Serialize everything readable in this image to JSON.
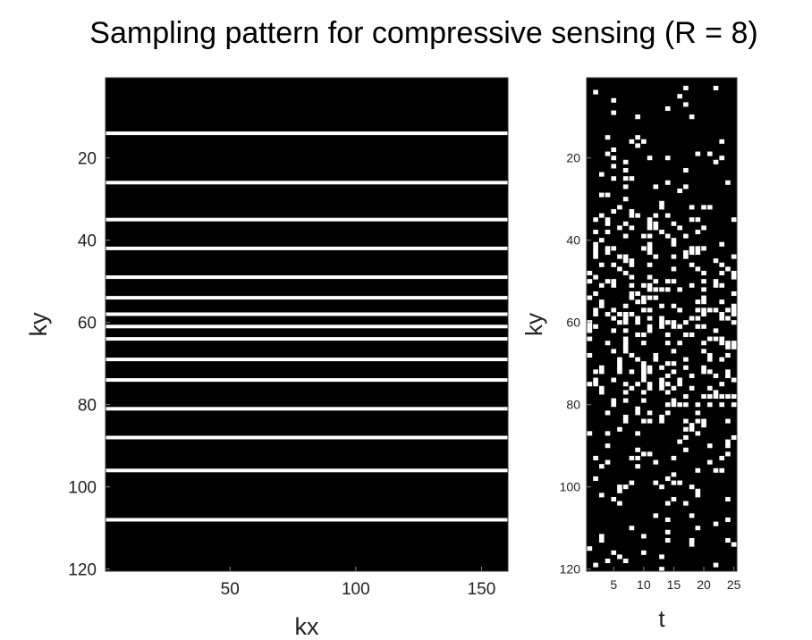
{
  "title": "Sampling pattern for compressive sensing (R = 8)",
  "colors": {
    "background": "#000000",
    "sample": "#ffffff",
    "frame": "#333333"
  },
  "chart_data": [
    {
      "type": "heatmap",
      "description_role": "kx-ky sampling mask for a single time frame",
      "xlabel": "kx",
      "ylabel": "ky",
      "xlim": [
        0.5,
        160.5
      ],
      "ylim": [
        0.5,
        120.5
      ],
      "y_reversed": true,
      "xticks": [
        50,
        100,
        150
      ],
      "yticks": [
        20,
        40,
        60,
        80,
        100,
        120
      ],
      "grid": false,
      "sampled_ky_lines": [
        14,
        26,
        35,
        42,
        49,
        54,
        58,
        61,
        64,
        69,
        74,
        81,
        88,
        96,
        108
      ]
    },
    {
      "type": "heatmap",
      "description_role": "ky-t sampling mask across 25 time frames",
      "xlabel": "t",
      "ylabel": "ky",
      "xlim": [
        0.5,
        25.5
      ],
      "ylim": [
        0.5,
        120.5
      ],
      "y_reversed": true,
      "xticks": [
        5,
        10,
        15,
        20,
        25
      ],
      "yticks": [
        20,
        40,
        60,
        80,
        100,
        120
      ],
      "grid": false,
      "acceleration_R": 8,
      "num_frames": 25,
      "num_ky": 120
    }
  ]
}
